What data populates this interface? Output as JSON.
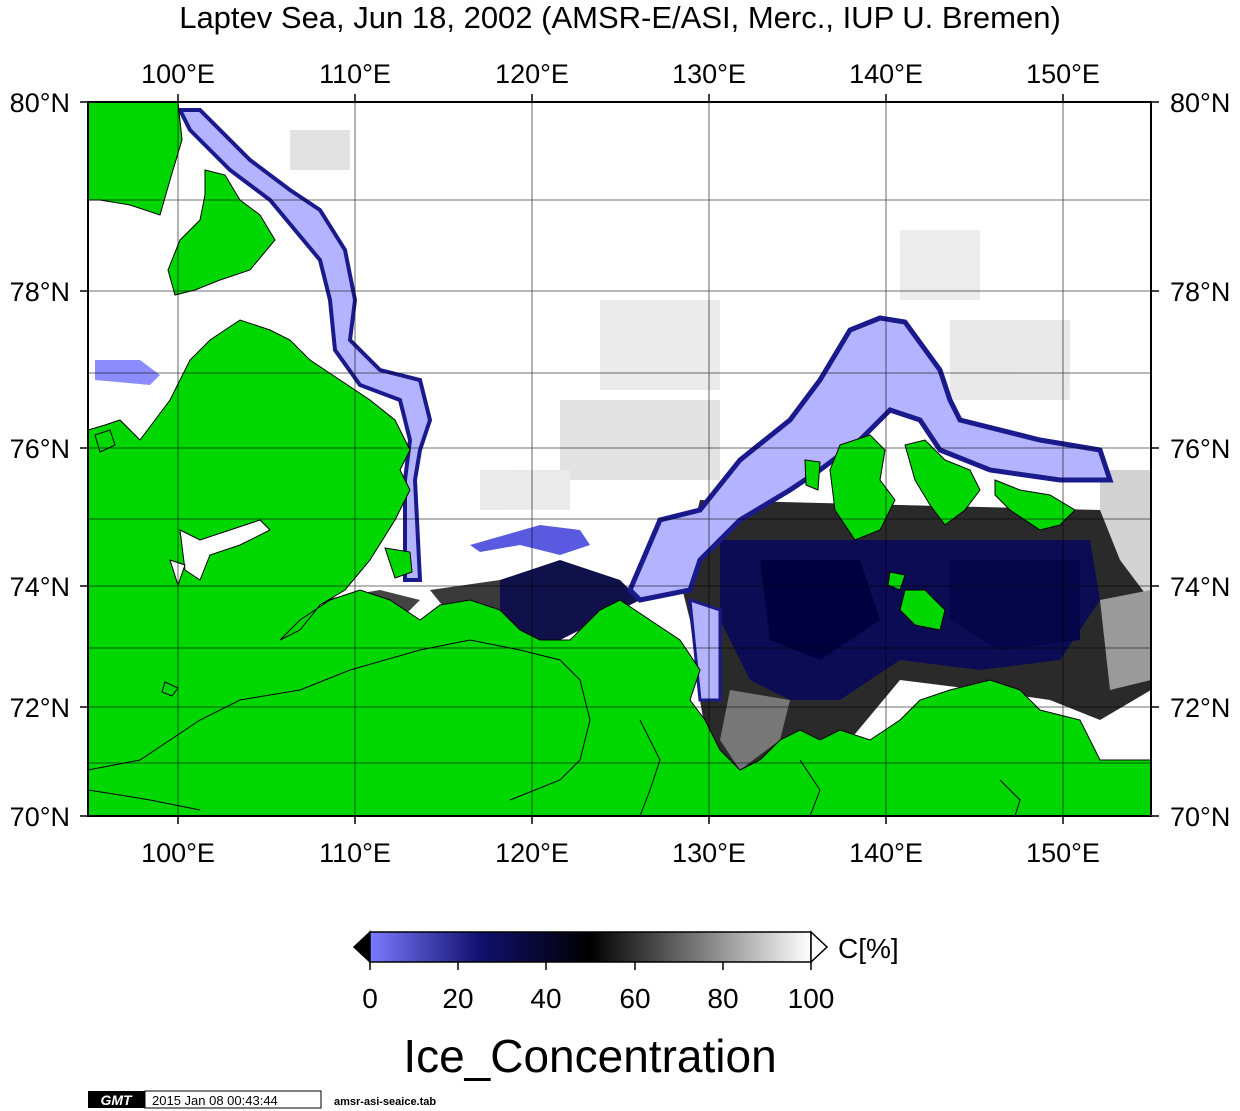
{
  "title": "Laptev Sea, Jun 18, 2002 (AMSR-E/ASI, Merc., IUP U. Bremen)",
  "map": {
    "lon_range": [
      95,
      155
    ],
    "lat_range": [
      70,
      80
    ],
    "lon_ticks": [
      "100°E",
      "110°E",
      "120°E",
      "130°E",
      "140°E",
      "150°E"
    ],
    "lat_ticks": [
      "70°N",
      "72°N",
      "74°N",
      "76°N",
      "78°N",
      "80°N"
    ],
    "colors": {
      "land": "#00d700",
      "water": "#ffffff",
      "ice_low": "#6e6ef5",
      "ice_mid": "#000060",
      "ice_zero_band": "#b3b3ff"
    }
  },
  "colorbar": {
    "tick_labels": [
      "0",
      "20",
      "40",
      "60",
      "80",
      "100"
    ],
    "unit": "C[%]",
    "title": "Ice_Concentration"
  },
  "footer": {
    "logo": "GMT",
    "timestamp": "2015 Jan 08 00:43:44",
    "filename": "amsr-asi-seaice.tab"
  }
}
